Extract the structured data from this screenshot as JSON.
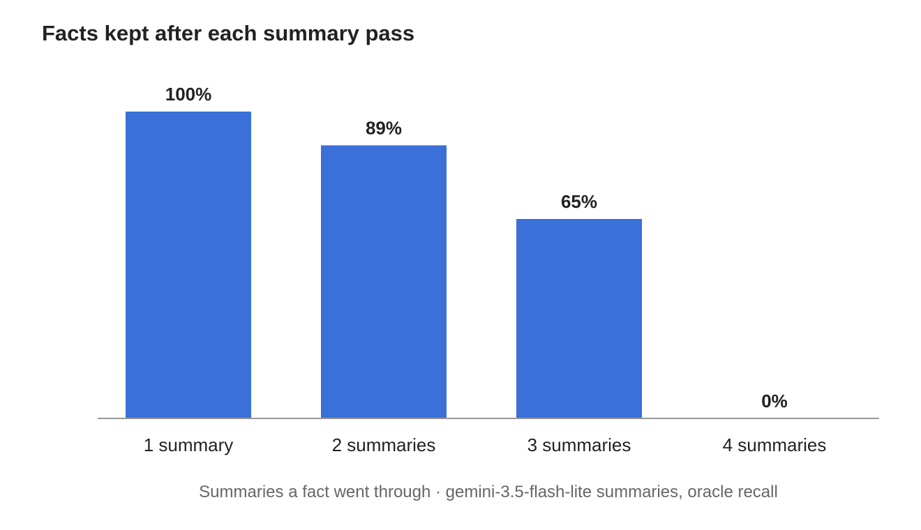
{
  "chart_data": {
    "type": "bar",
    "title": "Facts kept after each summary pass",
    "categories": [
      "1 summary",
      "2 summaries",
      "3 summaries",
      "4 summaries"
    ],
    "values": [
      100,
      89,
      65,
      0
    ],
    "value_labels": [
      "100%",
      "89%",
      "65%",
      "0%"
    ],
    "unit": "%",
    "ylim": [
      0,
      100
    ],
    "xlabel": "Summaries a fact went through · gemini-3.5-flash-lite summaries, oracle recall",
    "ylabel": "",
    "grid": false,
    "legend": "none",
    "bar_color": "#3A70D8",
    "axis_color": "#999999"
  }
}
